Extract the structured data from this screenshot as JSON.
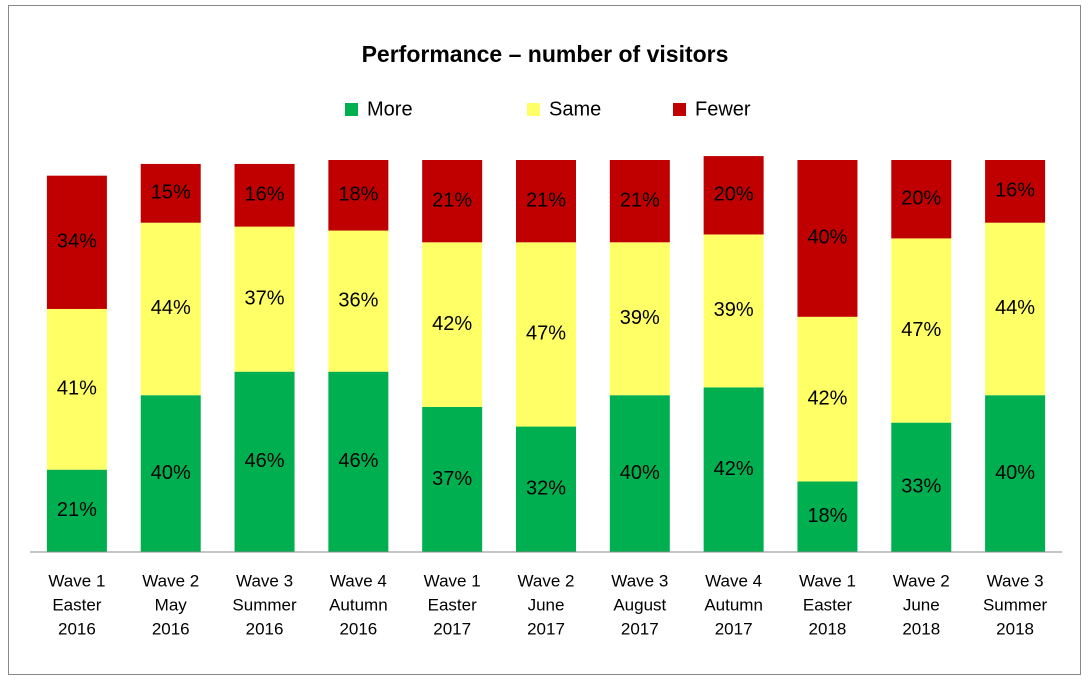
{
  "chart_data": {
    "type": "stacked_bar",
    "title": "Performance – number of visitors",
    "categories": [
      [
        "Wave 1",
        "Easter",
        "2016"
      ],
      [
        "Wave 2",
        "May",
        "2016"
      ],
      [
        "Wave 3",
        "Summer",
        "2016"
      ],
      [
        "Wave 4",
        "Autumn",
        "2016"
      ],
      [
        "Wave 1",
        "Easter",
        "2017"
      ],
      [
        "Wave 2",
        "June",
        "2017"
      ],
      [
        "Wave 3",
        "August",
        "2017"
      ],
      [
        "Wave 4",
        "Autumn",
        "2017"
      ],
      [
        "Wave 1",
        "Easter",
        "2018"
      ],
      [
        "Wave 2",
        "June",
        "2018"
      ],
      [
        "Wave 3",
        "Summer",
        "2018"
      ]
    ],
    "series": [
      {
        "name": "More",
        "color": "#00b050",
        "values": [
          21,
          40,
          46,
          46,
          37,
          32,
          40,
          42,
          18,
          33,
          40
        ],
        "value_labels": [
          "21%",
          "40%",
          "46%",
          "46%",
          "37%",
          "32%",
          "40%",
          "42%",
          "18%",
          "33%",
          "40%"
        ]
      },
      {
        "name": "Same",
        "color": "#ffff66",
        "values": [
          41,
          44,
          37,
          36,
          42,
          47,
          39,
          39,
          42,
          47,
          44
        ],
        "value_labels": [
          "41%",
          "44%",
          "37%",
          "36%",
          "42%",
          "47%",
          "39%",
          "39%",
          "42%",
          "47%",
          "44%"
        ]
      },
      {
        "name": "Fewer",
        "color": "#c00000",
        "values": [
          34,
          15,
          16,
          18,
          21,
          21,
          21,
          20,
          40,
          20,
          16
        ],
        "value_labels": [
          "34%",
          "15%",
          "16%",
          "18%",
          "21%",
          "21%",
          "21%",
          "20%",
          "40%",
          "20%",
          "16%"
        ]
      }
    ],
    "ylim": [
      0,
      100
    ],
    "legend": "top"
  }
}
